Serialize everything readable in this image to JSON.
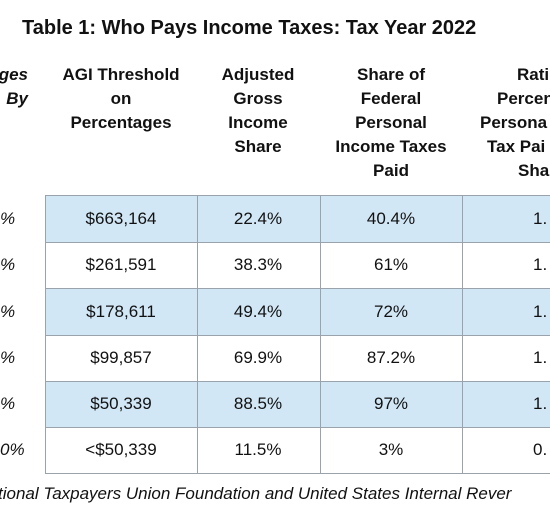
{
  "title": "Table 1: Who Pays Income Taxes: Tax Year 2022",
  "table": {
    "header": [
      [
        "ges",
        "By"
      ],
      [
        "AGI Threshold",
        "on",
        "Percentages"
      ],
      [
        "Adjusted",
        "Gross",
        "Income",
        "Share"
      ],
      [
        "Share of",
        "Federal",
        "Personal",
        "Income Taxes",
        "Paid"
      ],
      [
        "Rati",
        "Percen",
        "Persona",
        "Tax Pai",
        "Sha"
      ]
    ],
    "rows": [
      [
        "%",
        "$663,164",
        "22.4%",
        "40.4%",
        "1."
      ],
      [
        "%",
        "$261,591",
        "38.3%",
        "61%",
        "1."
      ],
      [
        "%",
        "$178,611",
        "49.4%",
        "72%",
        "1."
      ],
      [
        "%",
        "$99,857",
        "69.9%",
        "87.2%",
        "1."
      ],
      [
        "%",
        "$50,339",
        "88.5%",
        "97%",
        "1."
      ],
      [
        "0%",
        "<$50,339",
        "11.5%",
        "3%",
        "0."
      ]
    ]
  },
  "footer": "tional Taxpayers Union Foundation and United States Internal Rever"
}
